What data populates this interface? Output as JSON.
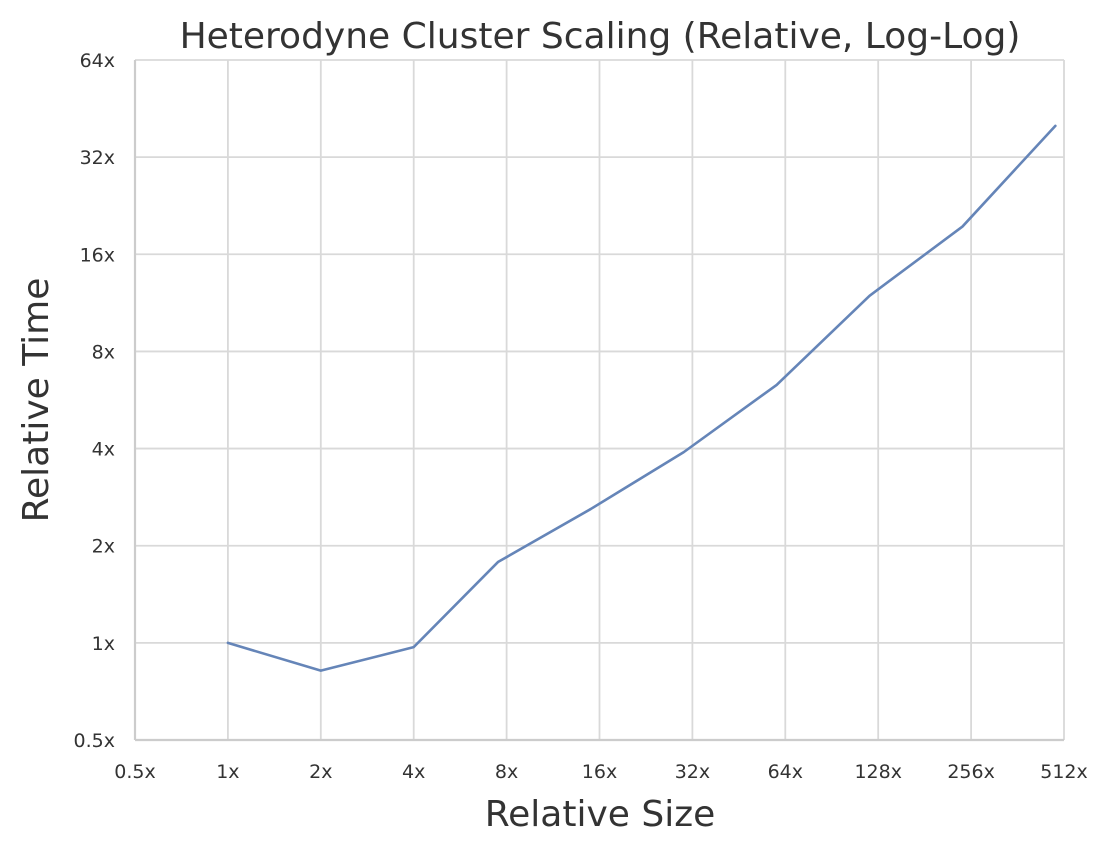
{
  "chart_data": {
    "type": "line",
    "title": "Heterodyne Cluster Scaling (Relative, Log-Log)",
    "xlabel": "Relative Size",
    "ylabel": "Relative Time",
    "x_scale": "log2",
    "y_scale": "log2",
    "xlim": [
      0.5,
      512
    ],
    "ylim": [
      0.5,
      64
    ],
    "x_ticks": [
      0.5,
      1,
      2,
      4,
      8,
      16,
      32,
      64,
      128,
      256,
      512
    ],
    "x_tick_labels": [
      "0.5x",
      "1x",
      "2x",
      "4x",
      "8x",
      "16x",
      "32x",
      "64x",
      "128x",
      "256x",
      "512x"
    ],
    "y_ticks": [
      0.5,
      1,
      2,
      4,
      8,
      16,
      32,
      64
    ],
    "y_tick_labels": [
      "0.5x",
      "1x",
      "2x",
      "4x",
      "8x",
      "16x",
      "32x",
      "64x"
    ],
    "grid": true,
    "series": [
      {
        "color": "#6585b8",
        "x": [
          1,
          2,
          4,
          7.5,
          15,
          30,
          60,
          120,
          240,
          480
        ],
        "y": [
          1.0,
          0.82,
          0.97,
          1.78,
          2.6,
          3.9,
          6.3,
          11.9,
          19.5,
          40.0
        ]
      }
    ]
  }
}
